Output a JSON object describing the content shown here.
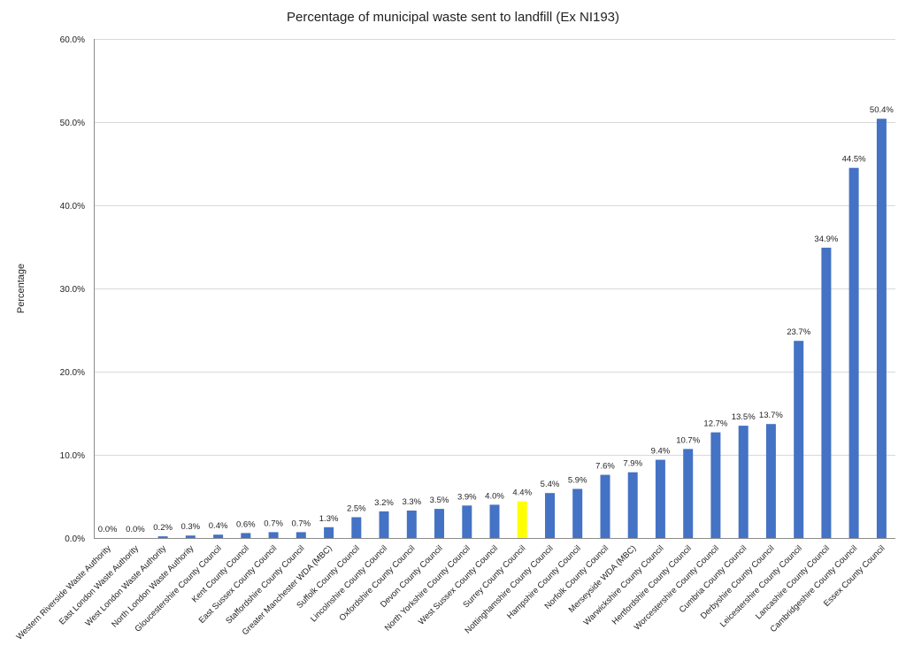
{
  "chart_data": {
    "type": "bar",
    "title": "Percentage of municipal waste sent to landfill (Ex NI193)",
    "xlabel": "",
    "ylabel": "Percentage",
    "ylim": [
      0,
      60
    ],
    "y_ticks": [
      "0.0%",
      "10.0%",
      "20.0%",
      "30.0%",
      "40.0%",
      "50.0%",
      "60.0%"
    ],
    "grid": "horizontal",
    "legend": "none",
    "bar_color": "#4472C4",
    "highlight_color": "#FFFF00",
    "highlight_category": "Surrey County Council",
    "categories": [
      "Western Riverside Waste Authority",
      "East London Waste Authority",
      "West London Waste Authority",
      "North London Waste Authority",
      "Gloucestershire County Council",
      "Kent County Council",
      "East Sussex County Council",
      "Staffordshire County Council",
      "Greater Manchester WDA (MBC)",
      "Suffolk County Council",
      "Lincolnshire County Council",
      "Oxfordshire County Council",
      "Devon County Council",
      "North Yorkshire County Council",
      "West Sussex County Council",
      "Surrey County Council",
      "Nottinghamshire County Council",
      "Hampshire County Council",
      "Norfolk County Council",
      "Merseyside WDA (MBC)",
      "Warwickshire County Council",
      "Hertfordshire County Council",
      "Worcestershire County Council",
      "Cumbria County Council",
      "Derbyshire County Council",
      "Leicestershire County Council",
      "Lancashire County Council",
      "Cambridgeshire County Council",
      "Essex County Council"
    ],
    "values": [
      0.0,
      0.0,
      0.2,
      0.3,
      0.4,
      0.6,
      0.7,
      0.7,
      1.3,
      2.5,
      3.2,
      3.3,
      3.5,
      3.9,
      4.0,
      4.4,
      5.4,
      5.9,
      7.6,
      7.9,
      9.4,
      10.7,
      12.7,
      13.5,
      13.7,
      23.7,
      34.9,
      44.5,
      50.4
    ],
    "data_labels": [
      "0.0%",
      "0.0%",
      "0.2%",
      "0.3%",
      "0.4%",
      "0.6%",
      "0.7%",
      "0.7%",
      "1.3%",
      "2.5%",
      "3.2%",
      "3.3%",
      "3.5%",
      "3.9%",
      "4.0%",
      "4.4%",
      "5.4%",
      "5.9%",
      "7.6%",
      "7.9%",
      "9.4%",
      "10.7%",
      "12.7%",
      "13.5%",
      "13.7%",
      "23.7%",
      "34.9%",
      "44.5%",
      "50.4%"
    ]
  }
}
